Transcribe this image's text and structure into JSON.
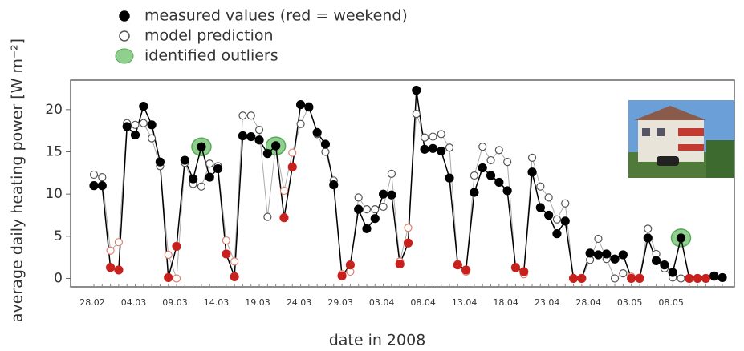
{
  "chart_data": {
    "type": "line",
    "x_label": "date in 2008",
    "y_label": "average daily heating power [W m⁻²]",
    "categories": [
      "28.02",
      null,
      null,
      null,
      null,
      "04.03",
      null,
      null,
      null,
      null,
      "09.03",
      null,
      null,
      null,
      null,
      "14.03",
      null,
      null,
      null,
      null,
      "19.03",
      null,
      null,
      null,
      null,
      "24.03",
      null,
      null,
      null,
      null,
      "29.03",
      null,
      null,
      null,
      null,
      "03.04",
      null,
      null,
      null,
      null,
      "08.04",
      null,
      null,
      null,
      null,
      "13.04",
      null,
      null,
      null,
      null,
      "18.04",
      null,
      null,
      null,
      null,
      "23.04",
      null,
      null,
      null,
      null,
      "28.04",
      null,
      null,
      null,
      null,
      "03.05",
      null,
      null,
      null,
      null,
      "08.05",
      null,
      null,
      null,
      null,
      null,
      null
    ],
    "series": [
      {
        "name": "measured values (red = weekend)",
        "color": "#000000",
        "line_color": "#000000",
        "filled": true,
        "values": [
          11.0,
          11.0,
          1.3,
          1.0,
          18.0,
          17.0,
          20.4,
          18.2,
          13.8,
          0.1,
          3.8,
          14.0,
          11.8,
          15.6,
          12.0,
          13.0,
          2.9,
          0.2,
          16.9,
          16.8,
          16.4,
          14.8,
          15.7,
          7.2,
          13.2,
          20.6,
          20.3,
          17.3,
          15.9,
          11.1,
          0.3,
          1.6,
          8.2,
          5.9,
          7.1,
          10.0,
          9.9,
          1.7,
          4.2,
          22.3,
          15.3,
          15.4,
          15.1,
          11.9,
          1.6,
          1.0,
          10.2,
          13.1,
          12.2,
          11.4,
          10.4,
          1.3,
          0.8,
          12.6,
          8.4,
          7.5,
          5.3,
          6.8,
          0.0,
          0.0,
          3.0,
          2.8,
          2.9,
          2.3,
          2.8,
          0.0,
          0.0,
          4.8,
          2.1,
          1.6,
          0.7,
          4.8,
          0.0,
          0.0,
          0.0,
          0.3,
          0.1
        ],
        "colors": [
          "#000",
          "#000",
          "#c8201c",
          "#c8201c",
          "#000",
          "#000",
          "#000",
          "#000",
          "#000",
          "#c8201c",
          "#c8201c",
          "#000",
          "#000",
          "#000",
          "#000",
          "#000",
          "#c8201c",
          "#c8201c",
          "#000",
          "#000",
          "#000",
          "#000",
          "#000",
          "#c8201c",
          "#c8201c",
          "#000",
          "#000",
          "#000",
          "#000",
          "#000",
          "#c8201c",
          "#c8201c",
          "#000",
          "#000",
          "#000",
          "#000",
          "#000",
          "#c8201c",
          "#c8201c",
          "#000",
          "#000",
          "#000",
          "#000",
          "#000",
          "#c8201c",
          "#c8201c",
          "#000",
          "#000",
          "#000",
          "#000",
          "#000",
          "#c8201c",
          "#c8201c",
          "#000",
          "#000",
          "#000",
          "#000",
          "#000",
          "#c8201c",
          "#c8201c",
          "#000",
          "#000",
          "#000",
          "#000",
          "#000",
          "#c8201c",
          "#c8201c",
          "#000",
          "#000",
          "#000",
          "#000",
          "#000",
          "#c8201c",
          "#c8201c",
          "#c8201c",
          "#000",
          "#000"
        ]
      },
      {
        "name": "model prediction",
        "color": "#555555",
        "line_color": "#aaaaaa",
        "filled": false,
        "values": [
          12.3,
          12.0,
          3.3,
          4.3,
          18.4,
          18.2,
          18.4,
          16.6,
          13.3,
          2.8,
          0.0,
          13.7,
          11.2,
          10.9,
          13.6,
          13.3,
          4.5,
          2.0,
          19.3,
          19.3,
          17.6,
          7.3,
          15.8,
          10.4,
          14.9,
          18.3,
          20.4,
          17.1,
          15.0,
          11.6,
          0.5,
          0.8,
          9.6,
          8.2,
          8.2,
          8.5,
          12.4,
          2.0,
          6.0,
          19.5,
          16.7,
          16.8,
          17.1,
          15.5,
          1.7,
          0.8,
          12.2,
          15.6,
          14.0,
          15.2,
          13.8,
          1.2,
          0.5,
          14.3,
          10.9,
          9.6,
          7.0,
          8.9,
          0.0,
          0.0,
          2.2,
          4.7,
          2.3,
          0.0,
          0.6,
          0.2,
          0.1,
          5.9,
          2.9,
          1.2,
          0.1,
          0.0,
          0.0,
          0.0,
          0.0,
          0.2,
          0.1
        ],
        "colors": [
          "#555",
          "#555",
          "#e08070",
          "#e08070",
          "#555",
          "#555",
          "#555",
          "#555",
          "#555",
          "#e08070",
          "#e08070",
          "#555",
          "#555",
          "#555",
          "#555",
          "#555",
          "#e08070",
          "#e08070",
          "#555",
          "#555",
          "#555",
          "#555",
          "#555",
          "#e08070",
          "#e08070",
          "#555",
          "#555",
          "#555",
          "#555",
          "#555",
          "#e08070",
          "#e08070",
          "#555",
          "#555",
          "#555",
          "#555",
          "#555",
          "#e08070",
          "#e08070",
          "#555",
          "#555",
          "#555",
          "#555",
          "#555",
          "#e08070",
          "#e08070",
          "#555",
          "#555",
          "#555",
          "#555",
          "#555",
          "#e08070",
          "#e08070",
          "#555",
          "#555",
          "#555",
          "#555",
          "#555",
          "#e08070",
          "#e08070",
          "#555",
          "#555",
          "#555",
          "#555",
          "#555",
          "#e08070",
          "#e08070",
          "#555",
          "#555",
          "#555",
          "#555",
          "#555",
          "#e08070",
          "#e08070",
          "#e08070",
          "#555",
          "#555"
        ]
      },
      {
        "name": "identified outliers",
        "color": "#8fd08f",
        "values": [
          null,
          null,
          null,
          null,
          null,
          null,
          null,
          null,
          null,
          null,
          null,
          null,
          null,
          15.6,
          null,
          null,
          null,
          null,
          null,
          null,
          null,
          null,
          15.7,
          null,
          null,
          null,
          null,
          null,
          null,
          null,
          null,
          null,
          null,
          null,
          null,
          null,
          null,
          null,
          null,
          null,
          null,
          null,
          null,
          null,
          null,
          null,
          null,
          null,
          null,
          null,
          null,
          null,
          null,
          null,
          null,
          null,
          null,
          null,
          null,
          null,
          null,
          null,
          null,
          null,
          null,
          null,
          null,
          null,
          null,
          null,
          null,
          4.8,
          null,
          null,
          null,
          null,
          null
        ]
      }
    ],
    "ylim": [
      -1,
      23.5
    ],
    "yticks": [
      0,
      5,
      10,
      15,
      20
    ]
  }
}
